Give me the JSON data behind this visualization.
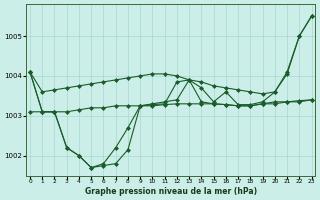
{
  "xlabel": "Graphe pression niveau de la mer (hPa)",
  "x_ticks": [
    0,
    1,
    2,
    3,
    4,
    5,
    6,
    7,
    8,
    9,
    10,
    11,
    12,
    13,
    14,
    15,
    16,
    17,
    18,
    19,
    20,
    21,
    22,
    23
  ],
  "ylim": [
    1001.5,
    1005.8
  ],
  "xlim": [
    -0.3,
    23.3
  ],
  "yticks": [
    1002,
    1003,
    1004,
    1005
  ],
  "background_color": "#cceee8",
  "grid_color": "#a8d8d0",
  "line_color": "#1a5c2a",
  "lines": [
    {
      "x": [
        0,
        1,
        2,
        3,
        4,
        5,
        6,
        7,
        8,
        9,
        10,
        11,
        12,
        13,
        14,
        15,
        16,
        17,
        18,
        19,
        20,
        21,
        22,
        23
      ],
      "y": [
        1004.1,
        1003.6,
        1003.65,
        1003.7,
        1003.75,
        1003.8,
        1003.85,
        1003.9,
        1003.95,
        1004.0,
        1004.05,
        1004.05,
        1004.0,
        1003.9,
        1003.85,
        1003.75,
        1003.7,
        1003.65,
        1003.6,
        1003.55,
        1003.6,
        1004.05,
        1005.0,
        1005.5
      ],
      "marker": "D",
      "markersize": 2.0
    },
    {
      "x": [
        0,
        1,
        2,
        3,
        4,
        5,
        6,
        7,
        8,
        9,
        10,
        11,
        12,
        13,
        14,
        15,
        16,
        17,
        18,
        19,
        20,
        21,
        22,
        23
      ],
      "y": [
        1003.1,
        1003.1,
        1003.1,
        1003.1,
        1003.15,
        1003.2,
        1003.2,
        1003.25,
        1003.25,
        1003.25,
        1003.25,
        1003.28,
        1003.3,
        1003.3,
        1003.3,
        1003.3,
        1003.28,
        1003.25,
        1003.25,
        1003.3,
        1003.3,
        1003.35,
        1003.35,
        1003.4
      ],
      "marker": "D",
      "markersize": 2.0
    },
    {
      "x": [
        0,
        1,
        2,
        3,
        4,
        5,
        6,
        7,
        8,
        9,
        10,
        11,
        12,
        13,
        14,
        15,
        16,
        17,
        18,
        19,
        20,
        21,
        22,
        23
      ],
      "y": [
        1004.1,
        1003.1,
        1003.1,
        1002.2,
        1002.0,
        1001.7,
        1001.75,
        1001.8,
        1002.15,
        1003.25,
        1003.28,
        1003.3,
        1003.85,
        1003.9,
        1003.35,
        1003.3,
        1003.28,
        1003.25,
        1003.25,
        1003.3,
        1003.35,
        1003.35,
        1003.38,
        1003.4
      ],
      "marker": "D",
      "markersize": 2.0
    },
    {
      "x": [
        0,
        1,
        2,
        3,
        4,
        5,
        6,
        7,
        8,
        9,
        10,
        11,
        12,
        13,
        14,
        15,
        16,
        17,
        18,
        19,
        20,
        21,
        22,
        23
      ],
      "y": [
        1004.1,
        1003.1,
        1003.1,
        1002.2,
        1002.0,
        1001.7,
        1001.8,
        1002.2,
        1002.7,
        1003.25,
        1003.3,
        1003.35,
        1003.4,
        1003.9,
        1003.7,
        1003.35,
        1003.6,
        1003.28,
        1003.28,
        1003.35,
        1003.6,
        1004.1,
        1005.0,
        1005.5
      ],
      "marker": "D",
      "markersize": 2.0
    }
  ]
}
